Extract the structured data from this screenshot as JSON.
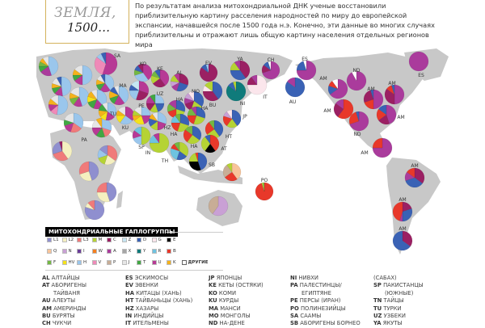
{
  "title": {
    "line1": "ЗЕМЛЯ,",
    "line2": "1500…"
  },
  "intro": "По результатам анализа митохондриальной ДНК ученые восстановили приблизительную картину расселения народностей по миру до европейской экспансии, начавшейся после 1500 года н.э. Конечно, эти данные во многих случаях приблизительны и отражают лишь общую картину населения отдельных регионов мира",
  "colors": {
    "L1": "#8f8fcf",
    "L2": "#f5f0c0",
    "L3": "#f07a7a",
    "M": "#b5d334",
    "C": "#9b2063",
    "Z": "#c6e6f2",
    "D": "#3a62b5",
    "G": "#fbe6ec",
    "E": "#000000",
    "Q": "#f8c49a",
    "N": "#c9a0d5",
    "I": "#6b3d99",
    "W": "#f47f20",
    "A": "#aa3b9c",
    "X": "#a6a6a6",
    "Y": "#0f7b7b",
    "R": "#6ec3e0",
    "B": "#e8382a",
    "F": "#74b843",
    "HV": "#f5e21a",
    "H": "#9ac6ec",
    "V": "#ef8ab8",
    "P": "#c8ad96",
    "J": "#e6e6e6",
    "T": "#41a743",
    "U": "#b73995",
    "K": "#f5b21b",
    "other": "#ffffff",
    "land": "#c8c8c8"
  },
  "legend": {
    "title": "МИТОХОНДРИАЛЬНЫЕ ГАПЛОГРУППЫ",
    "rows": [
      [
        "L1",
        "L2",
        "L3",
        "M",
        "C",
        "Z",
        "D",
        "G",
        "E"
      ],
      [
        "Q",
        "N",
        "I",
        "W",
        "A",
        "X",
        "Y",
        "R",
        "B"
      ],
      [
        "F",
        "HV",
        "H",
        "V",
        "P",
        "J",
        "T",
        "U",
        "K"
      ]
    ],
    "other_label": "ДРУГИЕ"
  },
  "pies": [
    {
      "label": "",
      "slices": [
        [
          "H",
          45
        ],
        [
          "A",
          20
        ],
        [
          "T",
          10
        ],
        [
          "F",
          8
        ],
        [
          "K",
          7
        ],
        [
          "J",
          10
        ]
      ]
    },
    {
      "label": "SA",
      "slices": [
        [
          "U",
          55
        ],
        [
          "V",
          30
        ],
        [
          "H",
          8
        ],
        [
          "D",
          7
        ]
      ]
    },
    {
      "label": "",
      "slices": [
        [
          "H",
          50
        ],
        [
          "U",
          15
        ],
        [
          "T",
          10
        ],
        [
          "K",
          10
        ],
        [
          "J",
          15
        ]
      ]
    },
    {
      "label": "",
      "slices": [
        [
          "H",
          48
        ],
        [
          "U",
          14
        ],
        [
          "T",
          10
        ],
        [
          "K",
          8
        ],
        [
          "J",
          12
        ],
        [
          "D",
          8
        ]
      ]
    },
    {
      "label": "",
      "slices": [
        [
          "H",
          45
        ],
        [
          "U",
          15
        ],
        [
          "F",
          12
        ],
        [
          "K",
          10
        ],
        [
          "J",
          18
        ]
      ]
    },
    {
      "label": "",
      "slices": [
        [
          "H",
          52
        ],
        [
          "V",
          12
        ],
        [
          "U",
          12
        ],
        [
          "K",
          10
        ],
        [
          "J",
          14
        ]
      ]
    },
    {
      "label": "",
      "slices": [
        [
          "H",
          40
        ],
        [
          "U",
          20
        ],
        [
          "T",
          12
        ],
        [
          "K",
          10
        ],
        [
          "J",
          10
        ],
        [
          "D",
          8
        ]
      ]
    },
    {
      "label": "",
      "slices": [
        [
          "H",
          38
        ],
        [
          "U",
          18
        ],
        [
          "T",
          14
        ],
        [
          "HV",
          10
        ],
        [
          "K",
          10
        ],
        [
          "J",
          10
        ]
      ]
    },
    {
      "label": "",
      "slices": [
        [
          "H",
          40
        ],
        [
          "U",
          18
        ],
        [
          "T",
          12
        ],
        [
          "K",
          12
        ],
        [
          "D",
          10
        ],
        [
          "J",
          8
        ]
      ]
    },
    {
      "label": "",
      "slices": [
        [
          "H",
          35
        ],
        [
          "L3",
          20
        ],
        [
          "U",
          15
        ],
        [
          "T",
          10
        ],
        [
          "J",
          20
        ]
      ]
    },
    {
      "label": "PA",
      "slices": [
        [
          "H",
          30
        ],
        [
          "L3",
          15
        ],
        [
          "T",
          15
        ],
        [
          "U",
          15
        ],
        [
          "J",
          15
        ],
        [
          "K",
          10
        ]
      ]
    },
    {
      "label": "TU",
      "slices": [
        [
          "H",
          35
        ],
        [
          "U",
          18
        ],
        [
          "HV",
          12
        ],
        [
          "K",
          12
        ],
        [
          "T",
          13
        ],
        [
          "J",
          10
        ]
      ]
    },
    {
      "label": "KU",
      "slices": [
        [
          "U",
          35
        ],
        [
          "H",
          25
        ],
        [
          "HV",
          15
        ],
        [
          "K",
          10
        ],
        [
          "J",
          15
        ]
      ]
    },
    {
      "label": "PE",
      "slices": [
        [
          "H",
          25
        ],
        [
          "U",
          20
        ],
        [
          "HV",
          20
        ],
        [
          "K",
          10
        ],
        [
          "M",
          10
        ],
        [
          "J",
          15
        ]
      ]
    },
    {
      "label": "MA",
      "slices": [
        [
          "U",
          30
        ],
        [
          "C",
          25
        ],
        [
          "H",
          20
        ],
        [
          "D",
          10
        ],
        [
          "Z",
          15
        ]
      ]
    },
    {
      "label": "KO",
      "slices": [
        [
          "U",
          40
        ],
        [
          "H",
          30
        ],
        [
          "F",
          10
        ],
        [
          "D",
          10
        ],
        [
          "C",
          10
        ]
      ]
    },
    {
      "label": "KE",
      "slices": [
        [
          "U",
          40
        ],
        [
          "C",
          25
        ],
        [
          "M",
          15
        ],
        [
          "F",
          10
        ],
        [
          "D",
          10
        ]
      ]
    },
    {
      "label": "AL",
      "slices": [
        [
          "C",
          30
        ],
        [
          "D",
          25
        ],
        [
          "A",
          12
        ],
        [
          "N",
          10
        ],
        [
          "M",
          13
        ],
        [
          "U",
          10
        ]
      ]
    },
    {
      "label": "EV",
      "slices": [
        [
          "C",
          85
        ],
        [
          "D",
          10
        ],
        [
          "H",
          5
        ]
      ]
    },
    {
      "label": "YA",
      "slices": [
        [
          "C",
          40
        ],
        [
          "D",
          35
        ],
        [
          "M",
          15
        ],
        [
          "A",
          10
        ]
      ]
    },
    {
      "label": "CH",
      "slices": [
        [
          "A",
          70
        ],
        [
          "C",
          15
        ],
        [
          "D",
          10
        ],
        [
          "other",
          5
        ]
      ]
    },
    {
      "label": "IT",
      "slices": [
        [
          "G",
          75
        ],
        [
          "C",
          15
        ],
        [
          "A",
          10
        ]
      ]
    },
    {
      "label": "UZ",
      "slices": [
        [
          "H",
          25
        ],
        [
          "D",
          20
        ],
        [
          "M",
          15
        ],
        [
          "C",
          15
        ],
        [
          "U",
          15
        ],
        [
          "T",
          10
        ]
      ]
    },
    {
      "label": "MO",
      "slices": [
        [
          "D",
          35
        ],
        [
          "M",
          20
        ],
        [
          "C",
          15
        ],
        [
          "A",
          10
        ],
        [
          "N",
          10
        ],
        [
          "G",
          10
        ]
      ]
    },
    {
      "label": "BU",
      "slices": [
        [
          "D",
          40
        ],
        [
          "C",
          35
        ],
        [
          "G",
          10
        ],
        [
          "M",
          15
        ]
      ]
    },
    {
      "label": "NI",
      "slices": [
        [
          "Y",
          85
        ],
        [
          "D",
          10
        ],
        [
          "M",
          5
        ]
      ]
    },
    {
      "label": "HA",
      "slices": [
        [
          "D",
          30
        ],
        [
          "M",
          20
        ],
        [
          "B",
          20
        ],
        [
          "F",
          15
        ],
        [
          "A",
          15
        ]
      ]
    },
    {
      "label": "HZ",
      "slices": [
        [
          "H",
          30
        ],
        [
          "U",
          20
        ],
        [
          "M",
          15
        ],
        [
          "D",
          15
        ],
        [
          "K",
          10
        ],
        [
          "J",
          10
        ]
      ]
    },
    {
      "label": "HA",
      "slices": [
        [
          "D",
          30
        ],
        [
          "M",
          25
        ],
        [
          "B",
          20
        ],
        [
          "R",
          15
        ],
        [
          "F",
          10
        ]
      ]
    },
    {
      "label": "HA",
      "slices": [
        [
          "D",
          30
        ],
        [
          "M",
          25
        ],
        [
          "B",
          20
        ],
        [
          "F",
          15
        ],
        [
          "A",
          10
        ]
      ]
    },
    {
      "label": "JP",
      "slices": [
        [
          "D",
          40
        ],
        [
          "M",
          20
        ],
        [
          "B",
          20
        ],
        [
          "N",
          10
        ],
        [
          "G",
          10
        ]
      ]
    },
    {
      "label": "SP",
      "slices": [
        [
          "M",
          50
        ],
        [
          "H",
          20
        ],
        [
          "U",
          15
        ],
        [
          "R",
          15
        ]
      ]
    },
    {
      "label": "IN",
      "slices": [
        [
          "M",
          75
        ],
        [
          "R",
          15
        ],
        [
          "U",
          10
        ]
      ]
    },
    {
      "label": "HA",
      "slices": [
        [
          "D",
          35
        ],
        [
          "M",
          25
        ],
        [
          "B",
          25
        ],
        [
          "F",
          15
        ]
      ]
    },
    {
      "label": "HT",
      "slices": [
        [
          "D",
          40
        ],
        [
          "M",
          25
        ],
        [
          "B",
          25
        ],
        [
          "F",
          10
        ]
      ]
    },
    {
      "label": "AT",
      "slices": [
        [
          "B",
          40
        ],
        [
          "E",
          20
        ],
        [
          "M",
          30
        ],
        [
          "D",
          10
        ]
      ]
    },
    {
      "label": "TH",
      "slices": [
        [
          "M",
          35
        ],
        [
          "D",
          20
        ],
        [
          "R",
          25
        ],
        [
          "B",
          10
        ],
        [
          "F",
          10
        ]
      ]
    },
    {
      "label": "SB",
      "slices": [
        [
          "D",
          45
        ],
        [
          "E",
          30
        ],
        [
          "M",
          20
        ],
        [
          "B",
          5
        ]
      ]
    },
    {
      "label": "",
      "slices": [
        [
          "Q",
          40
        ],
        [
          "B",
          25
        ],
        [
          "P",
          25
        ],
        [
          "M",
          10
        ]
      ]
    },
    {
      "label": "",
      "slices": [
        [
          "L2",
          40
        ],
        [
          "L3",
          30
        ],
        [
          "L1",
          25
        ],
        [
          "C",
          5
        ]
      ]
    },
    {
      "label": "",
      "slices": [
        [
          "L3",
          35
        ],
        [
          "L2",
          20
        ],
        [
          "M",
          15
        ],
        [
          "H",
          15
        ],
        [
          "L1",
          15
        ]
      ]
    },
    {
      "label": "",
      "slices": [
        [
          "L1",
          45
        ],
        [
          "L2",
          25
        ],
        [
          "L3",
          30
        ]
      ]
    },
    {
      "label": "",
      "slices": [
        [
          "L1",
          45
        ],
        [
          "L2",
          30
        ],
        [
          "L3",
          25
        ]
      ]
    },
    {
      "label": "",
      "slices": [
        [
          "L1",
          80
        ],
        [
          "L2",
          8
        ],
        [
          "L3",
          12
        ]
      ]
    },
    {
      "label": "",
      "slices": [
        [
          "N",
          60
        ],
        [
          "P",
          40
        ]
      ]
    },
    {
      "label": "PO",
      "slices": [
        [
          "B",
          95
        ],
        [
          "M",
          3
        ],
        [
          "F",
          2
        ]
      ]
    },
    {
      "label": "ES",
      "slices": [
        [
          "A",
          75
        ],
        [
          "D",
          20
        ],
        [
          "other",
          5
        ]
      ]
    },
    {
      "label": "AU",
      "slices": [
        [
          "D",
          85
        ],
        [
          "A",
          15
        ]
      ]
    },
    {
      "label": "ND",
      "slices": [
        [
          "A",
          92
        ],
        [
          "other",
          8
        ]
      ]
    },
    {
      "label": "AM",
      "slices": [
        [
          "A",
          65
        ],
        [
          "D",
          15
        ],
        [
          "B",
          10
        ],
        [
          "other",
          10
        ]
      ]
    },
    {
      "label": "AM",
      "slices": [
        [
          "A",
          50
        ],
        [
          "B",
          20
        ],
        [
          "C",
          25
        ],
        [
          "D",
          5
        ]
      ]
    },
    {
      "label": "AM",
      "slices": [
        [
          "A",
          50
        ],
        [
          "C",
          35
        ],
        [
          "B",
          10
        ],
        [
          "D",
          5
        ]
      ]
    },
    {
      "label": "AM",
      "slices": [
        [
          "B",
          60
        ],
        [
          "C",
          25
        ],
        [
          "A",
          15
        ]
      ]
    },
    {
      "label": "ND",
      "slices": [
        [
          "A",
          70
        ],
        [
          "B",
          25
        ],
        [
          "D",
          5
        ]
      ]
    },
    {
      "label": "AM",
      "slices": [
        [
          "A",
          45
        ],
        [
          "C",
          20
        ],
        [
          "B",
          20
        ],
        [
          "D",
          15
        ]
      ]
    },
    {
      "label": "AM",
      "slices": [
        [
          "A",
          75
        ],
        [
          "B",
          25
        ]
      ]
    },
    {
      "label": "ES",
      "slices": [
        [
          "A",
          100
        ]
      ]
    },
    {
      "label": "AM",
      "slices": [
        [
          "C",
          35
        ],
        [
          "D",
          35
        ],
        [
          "A",
          15
        ],
        [
          "B",
          15
        ]
      ]
    },
    {
      "label": "AM",
      "slices": [
        [
          "C",
          20
        ],
        [
          "D",
          30
        ],
        [
          "A",
          5
        ],
        [
          "B",
          45
        ]
      ]
    },
    {
      "label": "AM",
      "slices": [
        [
          "C",
          35
        ],
        [
          "D",
          65
        ]
      ]
    }
  ],
  "abbr": [
    [
      [
        "AL",
        "АЛТАЙЦЫ"
      ],
      [
        "AT",
        "АБОРИГЕНЫ"
      ],
      [
        "",
        "ТАЙВАНЯ"
      ],
      [
        "AU",
        "АЛЕУТЫ"
      ],
      [
        "AM",
        "АМЕРИНДЫ"
      ],
      [
        "BU",
        "БУРЯТЫ"
      ],
      [
        "CH",
        "ЧУКЧИ"
      ]
    ],
    [
      [
        "ES",
        "ЭСКИМОСЫ"
      ],
      [
        "EV",
        "ЭВЕНКИ"
      ],
      [
        "HA",
        "КИТАЦЫ (ХАНЬ)"
      ],
      [
        "HT",
        "ТАЙВАНЬЦЫ (ХАНЬ)"
      ],
      [
        "HZ",
        "ХАЗАРЫ"
      ],
      [
        "IN",
        "ИНДИЙЦЫ"
      ],
      [
        "IT",
        "ИТЕЛЬМЕНЫ"
      ]
    ],
    [
      [
        "JP",
        "ЯПОНЦЫ"
      ],
      [
        "KE",
        "КЕТЫ (ОСТЯКИ)"
      ],
      [
        "KO",
        "КОМИ"
      ],
      [
        "KU",
        "КУРДЫ"
      ],
      [
        "MA",
        "МАНСИ"
      ],
      [
        "MO",
        "МОНГОЛЫ"
      ],
      [
        "ND",
        "НА-ДЕНЕ"
      ]
    ],
    [
      [
        "NI",
        "НИВХИ"
      ],
      [
        "PA",
        "ПАЛЕСТИНЦЫ/"
      ],
      [
        "",
        "ЕГИПТЯНЕ"
      ],
      [
        "PE",
        "ПЕРСЫ (ИРАН)"
      ],
      [
        "PO",
        "ПОЛИНЕЗИЙЦЫ"
      ],
      [
        "SA",
        "СААМЫ"
      ],
      [
        "SB",
        "АБОРИГЕНЫ БОРНЕО"
      ]
    ],
    [
      [
        "",
        "(САБАХ)"
      ],
      [
        "SP",
        "ПАКИСТАНЦЫ"
      ],
      [
        "",
        "(ЮЖНЫЕ)"
      ],
      [
        "TN",
        "ТАЙЦЫ"
      ],
      [
        "TU",
        "ТУРКИ"
      ],
      [
        "UZ",
        "УЗБЕКИ"
      ],
      [
        "YA",
        "ЯКУТЫ"
      ]
    ]
  ]
}
